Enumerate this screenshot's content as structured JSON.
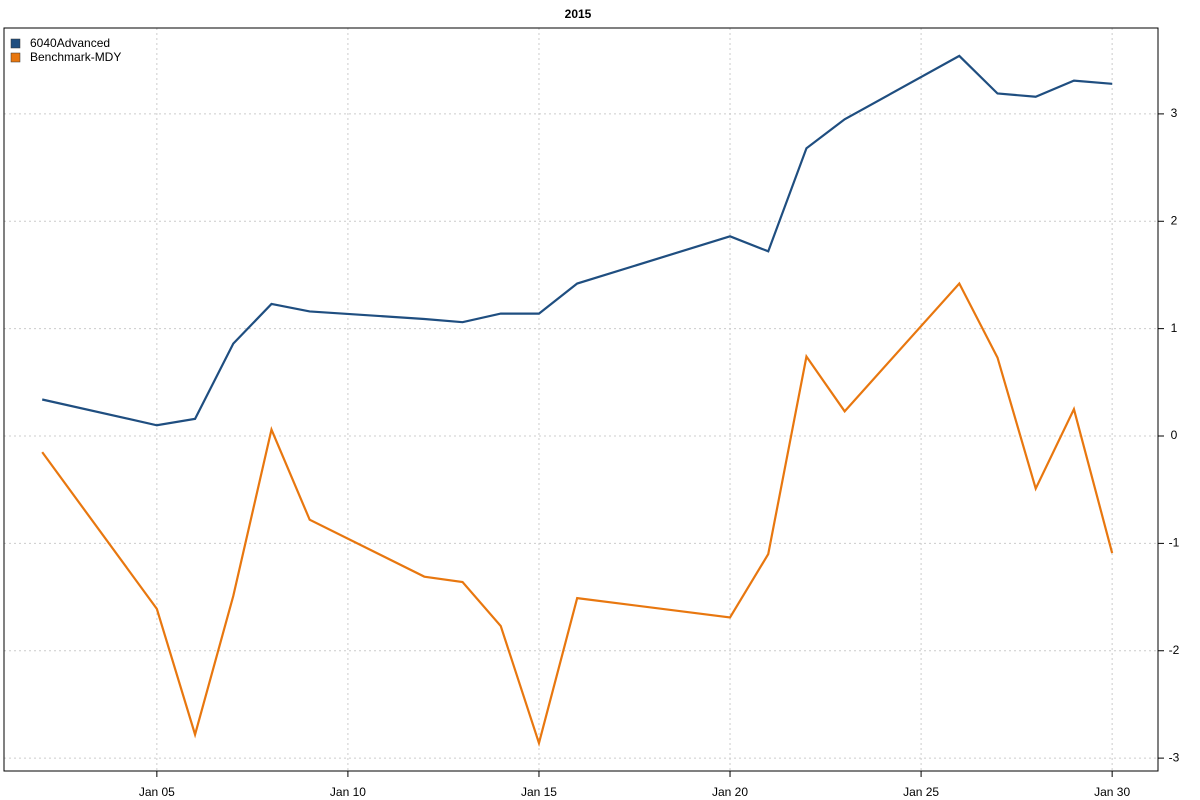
{
  "chart_data": {
    "type": "line",
    "title": "2015",
    "x": [
      2,
      5,
      6,
      7,
      8,
      9,
      12,
      13,
      14,
      15,
      16,
      20,
      21,
      22,
      23,
      26,
      27,
      28,
      29,
      30
    ],
    "series": [
      {
        "name": "6040Advanced",
        "color": "#1f4e80",
        "values": [
          0.34,
          0.1,
          0.16,
          0.86,
          1.23,
          1.16,
          1.09,
          1.06,
          1.14,
          1.14,
          1.42,
          1.86,
          1.72,
          2.68,
          2.95,
          3.54,
          3.19,
          3.16,
          3.31,
          3.28
        ]
      },
      {
        "name": "Benchmark-MDY",
        "color": "#e8770f",
        "values": [
          -0.15,
          -1.61,
          -2.78,
          -1.49,
          0.06,
          -0.78,
          -1.31,
          -1.36,
          -1.77,
          -2.86,
          -1.51,
          -1.69,
          -1.1,
          0.74,
          0.23,
          1.42,
          0.73,
          -0.49,
          0.25,
          -1.09
        ]
      }
    ],
    "xlim": [
      1.0,
      31.2
    ],
    "xticks": [
      {
        "value": 5,
        "label": "Jan 05"
      },
      {
        "value": 10,
        "label": "Jan 10"
      },
      {
        "value": 15,
        "label": "Jan 15"
      },
      {
        "value": 20,
        "label": "Jan 20"
      },
      {
        "value": 25,
        "label": "Jan 25"
      },
      {
        "value": 30,
        "label": "Jan 30"
      }
    ],
    "ylim": [
      -3.12,
      3.8
    ],
    "yticks": [
      -3,
      -2,
      -1,
      0,
      1,
      2,
      3
    ],
    "grid": true,
    "legend": "top-left"
  }
}
